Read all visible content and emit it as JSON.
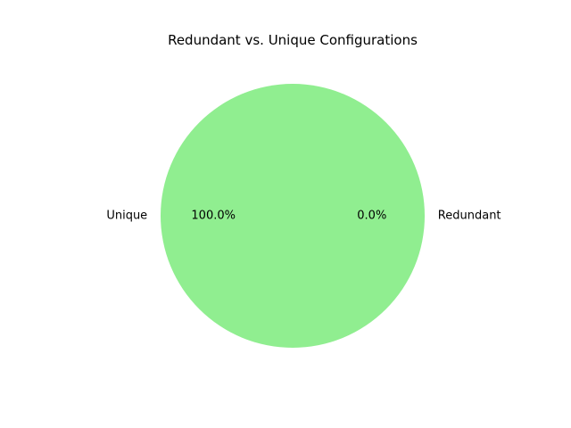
{
  "chart_data": {
    "type": "pie",
    "title": "Redundant vs. Unique Configurations",
    "categories": [
      "Redundant",
      "Unique"
    ],
    "values": [
      0,
      100
    ],
    "percent_labels": [
      "0.0%",
      "100.0%"
    ],
    "colors": [
      "#FFA07A",
      "#90EE90"
    ],
    "legend": "none"
  }
}
